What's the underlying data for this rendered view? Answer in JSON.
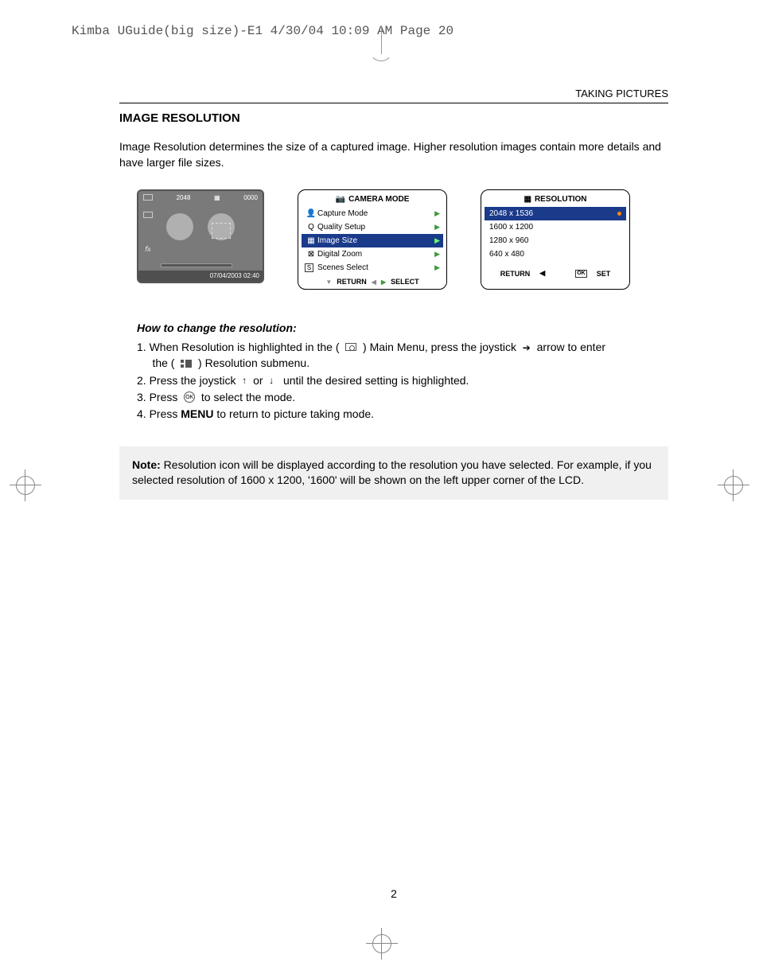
{
  "print_header": "Kimba UGuide(big size)-E1  4/30/04  10:09 AM  Page 20",
  "chapter": "TAKING PICTURES",
  "section_title": "IMAGE RESOLUTION",
  "intro": "Image Resolution determines the size of a captured image.  Higher resolution images contain more details and have larger file sizes.",
  "lcd": {
    "top_value": "2048",
    "top_counter": "0000",
    "flash": "𝘧ᴀ",
    "timestamp": "07/04/2003  02:40"
  },
  "camera_menu": {
    "title": "CAMERA  MODE",
    "items": [
      {
        "icon": "👤",
        "label": "Capture Mode",
        "selected": false,
        "icon_type": "glyph"
      },
      {
        "icon": "Q",
        "label": "Quality Setup",
        "selected": false,
        "icon_type": "glyph"
      },
      {
        "icon": "▦",
        "label": "Image Size",
        "selected": true,
        "icon_type": "glyph"
      },
      {
        "icon": "⊠",
        "label": "Digital Zoom",
        "selected": false,
        "icon_type": "glyph"
      },
      {
        "icon": "S",
        "label": "Scenes Select",
        "selected": false,
        "icon_type": "box"
      }
    ],
    "footer_return": "RETURN",
    "footer_select": "SELECT"
  },
  "res_menu": {
    "title": "RESOLUTION",
    "items": [
      {
        "label": "2048 x 1536",
        "selected": true
      },
      {
        "label": "1600 x 1200",
        "selected": false
      },
      {
        "label": "1280 x 960",
        "selected": false
      },
      {
        "label": "640 x 480",
        "selected": false
      }
    ],
    "footer_return": "RETURN",
    "footer_set": "SET"
  },
  "howto_title": "How to change the resolution:",
  "steps": {
    "s1a": "1.  When Resolution is highlighted in the (",
    "s1b": ") Main Menu, press the joystick",
    "s1c": "arrow to enter",
    "s1d": "the (",
    "s1e": ") Resolution submenu.",
    "s2a": "2.  Press the joystick",
    "s2b": "or",
    "s2c": "until the desired setting is highlighted.",
    "s3a": "3.  Press",
    "s3b": "to select the mode.",
    "s4a": "4.  Press ",
    "s4menu": "MENU",
    "s4b": " to return to picture taking mode."
  },
  "note_label": "Note:",
  "note_body": " Resolution icon will be displayed according to the resolution you have selected. For example, if you selected resolution of 1600 x 1200, '1600'  will be shown on the left upper corner of the LCD.",
  "page_number": "2",
  "ok_text": "OK",
  "arrows": {
    "right": "➔",
    "up": "↑",
    "down": "↓",
    "tri_right": "▶",
    "tri_left": "◀",
    "tri_down": "▼"
  }
}
